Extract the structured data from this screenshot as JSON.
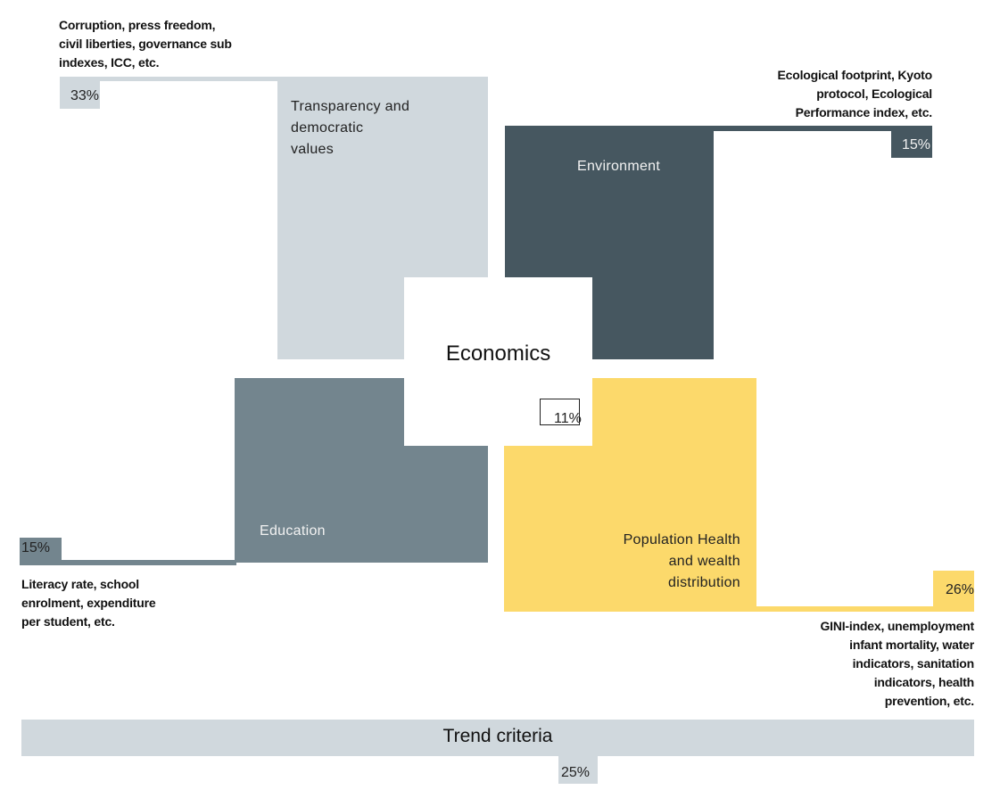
{
  "colors": {
    "transparency": "#d0d8dd",
    "environment": "#465760",
    "education": "#73858e",
    "health": "#fcd96b",
    "trend": "#d0d8dd",
    "economics": "#ffffff"
  },
  "center": {
    "label": "Economics",
    "percent": "11%"
  },
  "transparency": {
    "label_lines": [
      "Transparency and",
      "democratic",
      "values"
    ],
    "percent": "33%",
    "note_lines": [
      "Corruption, press freedom,",
      "civil liberties, governance sub",
      "indexes, ICC, etc."
    ]
  },
  "environment": {
    "label": "Environment",
    "percent": "15%",
    "note_lines": [
      "Ecological footprint, Kyoto",
      "protocol, Ecological",
      "Performance index, etc."
    ]
  },
  "education": {
    "label": "Education",
    "percent": "15%",
    "note_lines": [
      "Literacy rate, school",
      "enrolment, expenditure",
      "per student, etc."
    ]
  },
  "health": {
    "label_lines": [
      "Population Health",
      "and wealth",
      "distribution"
    ],
    "percent": "26%",
    "note_lines": [
      "GINI-index, unemployment",
      "infant mortality, water",
      "indicators, sanitation",
      "indicators, health",
      "prevention, etc."
    ]
  },
  "trend": {
    "label": "Trend criteria",
    "percent": "25%"
  }
}
